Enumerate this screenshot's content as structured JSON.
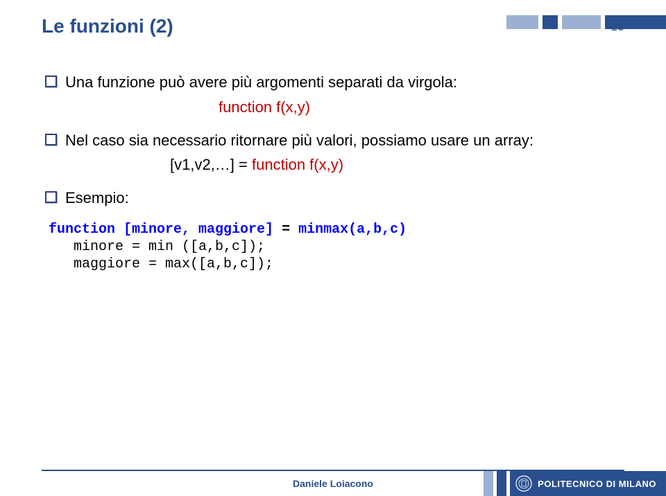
{
  "colors": {
    "title": "#2a4f8f",
    "pagenum": "#3a5a95",
    "text": "#000000",
    "bullet_border": "#2a3f7a",
    "bullet_shadow": "#a8b3c9",
    "red": "#c00000",
    "stripe_light": "#9bb0d3",
    "stripe_dark": "#2a4f8f",
    "footer_line": "#2a4f8f",
    "author": "#2a4f8f",
    "polimi_bg": "#2a4f8f",
    "polimi_text": "#ffffff",
    "code_blue": "#0000ff"
  },
  "fonts": {
    "title_size": 28,
    "pagenum_size": 18,
    "body_size": 22,
    "red_size": 22,
    "code_size": 20,
    "author_size": 14,
    "polimi_size": 13
  },
  "layout": {
    "stripe_widths": [
      46,
      22,
      56,
      88
    ],
    "footer_stripe_widths": [
      14,
      14
    ]
  },
  "header": {
    "title": "Le funzioni (2)",
    "page": "10"
  },
  "bullets": {
    "b1": "Una funzione può avere più argomenti separati da virgola:",
    "b1_red": "function f(x,y)",
    "b2": "Nel caso sia necessario ritornare più valori, possiamo usare un array:",
    "b2_black": "[v1,v2,…] = ",
    "b2_red": "function f(x,y)",
    "b3": "Esempio:"
  },
  "code": {
    "l1a": "function ",
    "l1b": "[minore, maggiore] ",
    "l1c": "= ",
    "l1d": "minmax",
    "l1e": "(a,b,c)",
    "l2": "   minore = min ([a,b,c]);",
    "l3": "   maggiore = max([a,b,c]);"
  },
  "footer": {
    "author": "Daniele Loiacono",
    "polimi": "POLITECNICO DI MILANO"
  }
}
